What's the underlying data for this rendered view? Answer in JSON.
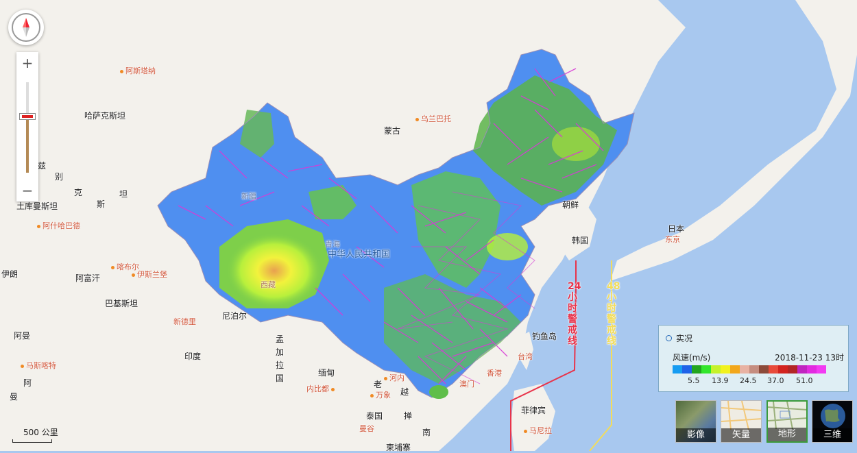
{
  "map": {
    "country_labels": [
      {
        "id": "kazakhstan",
        "text": "哈萨克斯坦"
      },
      {
        "id": "mongolia",
        "text": "蒙古"
      },
      {
        "id": "china",
        "text": "中华人民共和国"
      },
      {
        "id": "north-korea",
        "text": "朝鲜"
      },
      {
        "id": "south-korea",
        "text": "韩国"
      },
      {
        "id": "japan",
        "text": "日本"
      },
      {
        "id": "afghanistan",
        "text": "阿富汗"
      },
      {
        "id": "pakistan",
        "text": "巴基斯坦"
      },
      {
        "id": "iran",
        "text": "伊朗"
      },
      {
        "id": "nepal",
        "text": "尼泊尔"
      },
      {
        "id": "india",
        "text": "印度"
      },
      {
        "id": "myanmar",
        "text": "缅甸"
      },
      {
        "id": "thailand",
        "text": "泰国"
      },
      {
        "id": "laos",
        "text": "老"
      },
      {
        "id": "vietnam",
        "text": "越"
      },
      {
        "id": "cambodia",
        "text": "柬埔寨"
      },
      {
        "id": "philippines",
        "text": "菲律宾"
      },
      {
        "id": "bangladesh",
        "text": "孟加拉国"
      },
      {
        "id": "turkmenistan",
        "text": "土库曼斯坦"
      },
      {
        "id": "oman",
        "text": "阿曼"
      },
      {
        "id": "uzbek-1",
        "text": "兹"
      },
      {
        "id": "uzbek-2",
        "text": "别"
      },
      {
        "id": "uzbek-3",
        "text": "克"
      },
      {
        "id": "uzbek-4",
        "text": "斯"
      },
      {
        "id": "uzbek-5",
        "text": "坦"
      },
      {
        "id": "arabian-1",
        "text": "阿"
      },
      {
        "id": "arabian-2",
        "text": "曼"
      },
      {
        "id": "cambodia-2",
        "text": "掸"
      },
      {
        "id": "south",
        "text": "南"
      },
      {
        "id": "diaoyu",
        "text": "钓鱼岛"
      }
    ],
    "city_labels": [
      {
        "id": "astana",
        "text": "阿斯塔纳"
      },
      {
        "id": "ulaanbaatar",
        "text": "乌兰巴托"
      },
      {
        "id": "ashgabat",
        "text": "阿什哈巴德"
      },
      {
        "id": "kabul",
        "text": "喀布尔"
      },
      {
        "id": "islamabad",
        "text": "伊斯兰堡"
      },
      {
        "id": "new-delhi",
        "text": "新德里"
      },
      {
        "id": "muscat",
        "text": "马斯喀特"
      },
      {
        "id": "naypyidaw",
        "text": "内比都"
      },
      {
        "id": "hanoi",
        "text": "河内"
      },
      {
        "id": "vientiane",
        "text": "万象"
      },
      {
        "id": "bangkok",
        "text": "曼谷"
      },
      {
        "id": "manila",
        "text": "马尼拉"
      },
      {
        "id": "tokyo",
        "text": "东京"
      },
      {
        "id": "hongkong",
        "text": "香港"
      },
      {
        "id": "macau",
        "text": "澳门"
      },
      {
        "id": "taiwan",
        "text": "台湾"
      }
    ],
    "province_labels": [
      {
        "id": "xinjiang",
        "text": "新疆"
      },
      {
        "id": "tibet",
        "text": "西藏"
      },
      {
        "id": "qinghai",
        "text": "青海"
      }
    ],
    "warning_lines": [
      {
        "id": "24h",
        "text": "24小时警戒线",
        "color": "#e8334a"
      },
      {
        "id": "48h",
        "text": "48小时警戒线",
        "color": "#f2dc5a"
      }
    ]
  },
  "legend": {
    "title": "实况",
    "unit": "风速(m/s)",
    "timestamp": "2018-11-23 13时",
    "colors": [
      "#169cf2",
      "#1f62e8",
      "#22a51f",
      "#32e62c",
      "#c6f22a",
      "#f2f21e",
      "#f2a71b",
      "#e8b2a3",
      "#c58d80",
      "#8c4a3a",
      "#e84a3a",
      "#d2231f",
      "#b22525",
      "#c025c0",
      "#e22ae0",
      "#f23af2"
    ],
    "ticks": [
      "5.5",
      "13.9",
      "24.5",
      "37.0",
      "51.0"
    ]
  },
  "controls": {
    "zoom_in": "+",
    "zoom_out": "−",
    "zoom_level_fraction": 0.62,
    "scale_label": "500 公里"
  },
  "layers": [
    {
      "id": "imagery",
      "label": "影像",
      "active": false
    },
    {
      "id": "vector",
      "label": "矢量",
      "active": false
    },
    {
      "id": "terrain",
      "label": "地形",
      "active": true
    },
    {
      "id": "3d",
      "label": "三维",
      "active": false
    }
  ]
}
